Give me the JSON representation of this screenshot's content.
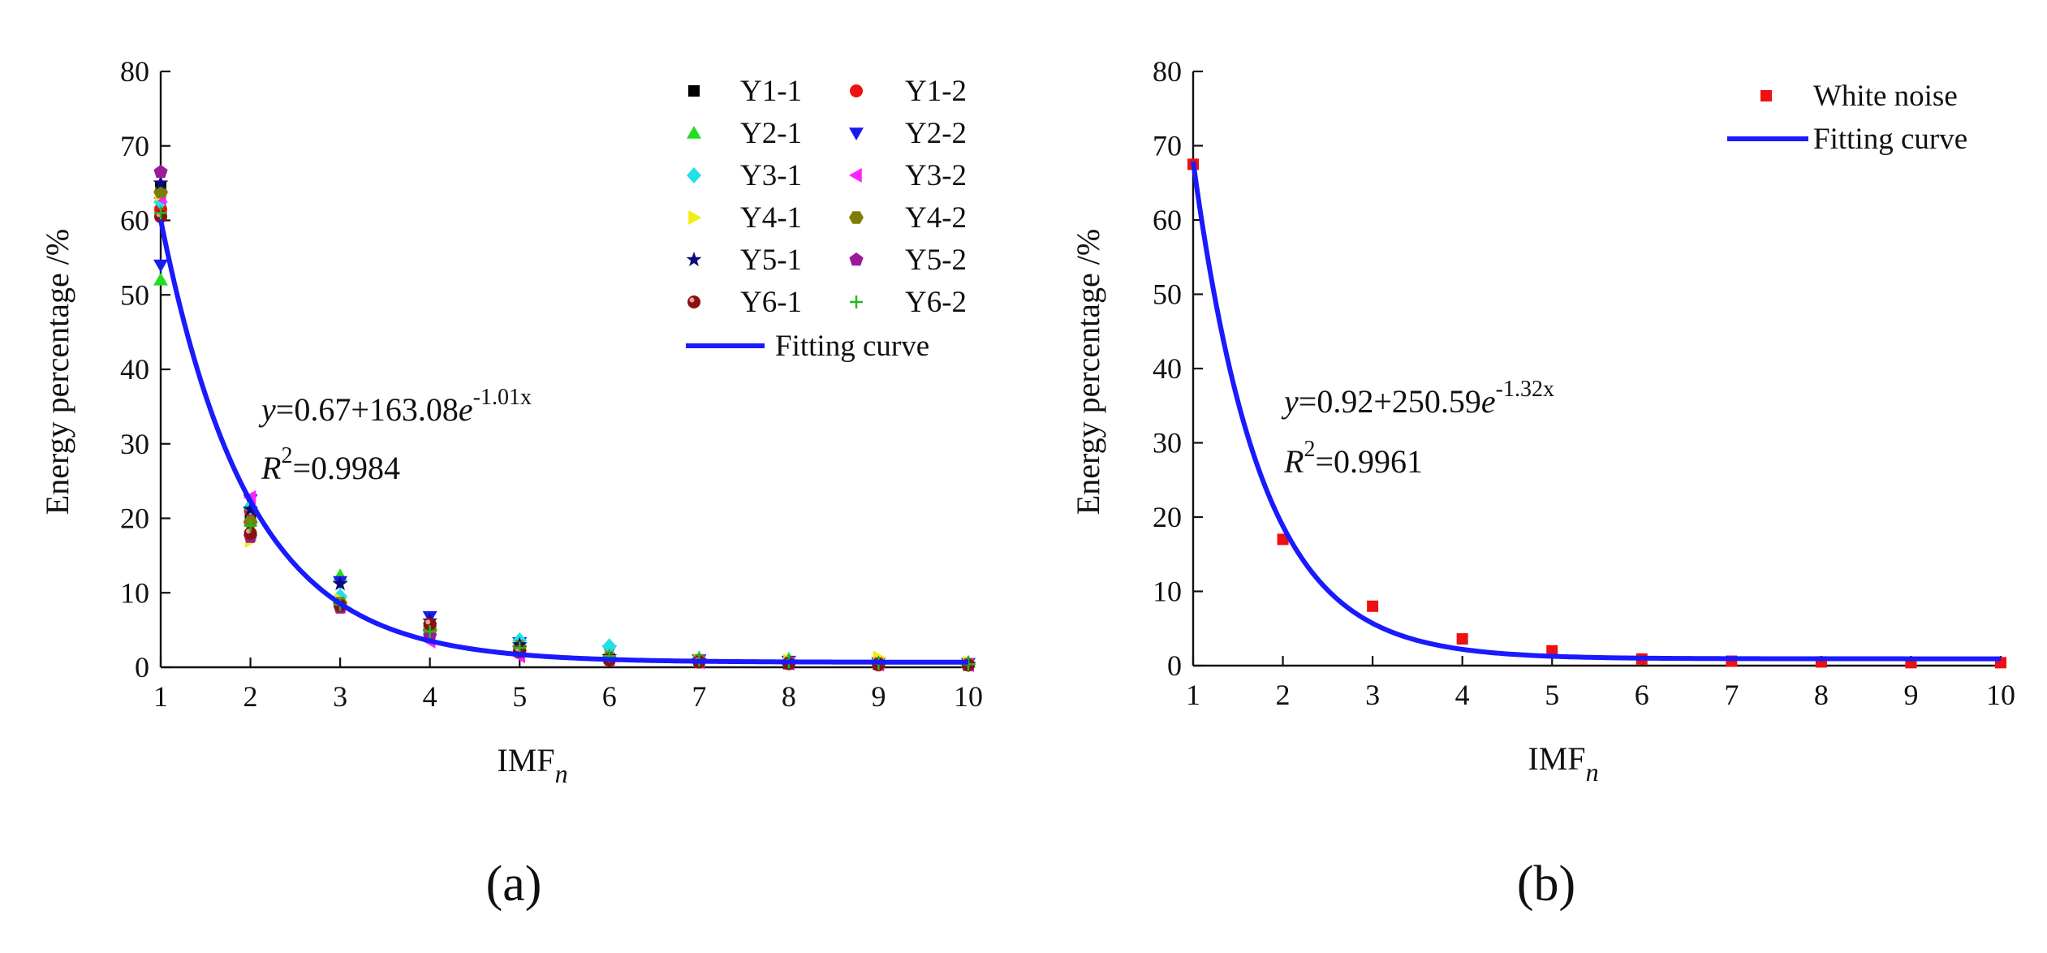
{
  "chart_data": [
    {
      "type": "scatter",
      "panel_label": "(a)",
      "xlabel": "IMF",
      "xlabel_sub": "n",
      "ylabel": "Energy percentage /%",
      "xlim": [
        1,
        10
      ],
      "ylim": [
        0,
        80
      ],
      "xticks": [
        1,
        2,
        3,
        4,
        5,
        6,
        7,
        8,
        9,
        10
      ],
      "yticks": [
        0,
        10,
        20,
        30,
        40,
        50,
        60,
        70,
        80
      ],
      "legend_position": "top-right",
      "equation": {
        "y": "y",
        "text": "=0.67+163.08",
        "e": "e",
        "exp": "-1.01x",
        "r": "R",
        "r2sup": "2",
        "r2val": "=0.9984"
      },
      "fit": {
        "name": "Fitting curve",
        "a": 0.67,
        "b": 163.08,
        "k": -1.01,
        "color": "#1a1aff"
      },
      "series": [
        {
          "name": "Y1-1",
          "marker": "square",
          "color": "#000000",
          "x": [
            1,
            2,
            3,
            4,
            5,
            6,
            7,
            8,
            9,
            10
          ],
          "y": [
            64.5,
            20.5,
            8.8,
            5.2,
            2.6,
            1.2,
            0.8,
            0.5,
            0.4,
            0.3
          ]
        },
        {
          "name": "Y1-2",
          "marker": "circle",
          "color": "#ee1111",
          "x": [
            1,
            2,
            3,
            4,
            5,
            6,
            7,
            8,
            9,
            10
          ],
          "y": [
            61.5,
            21.0,
            8.5,
            5.4,
            2.4,
            1.1,
            0.8,
            0.5,
            0.3,
            0.3
          ]
        },
        {
          "name": "Y2-1",
          "marker": "triangle-up",
          "color": "#22dd22",
          "x": [
            1,
            2,
            3,
            4,
            5,
            6,
            7,
            8,
            9,
            10
          ],
          "y": [
            52.0,
            22.0,
            12.3,
            6.5,
            3.5,
            2.0,
            1.3,
            1.1,
            0.8,
            0.7
          ]
        },
        {
          "name": "Y2-2",
          "marker": "triangle-down",
          "color": "#1a1aee",
          "x": [
            1,
            2,
            3,
            4,
            5,
            6,
            7,
            8,
            9,
            10
          ],
          "y": [
            54.0,
            22.5,
            11.5,
            6.8,
            3.3,
            2.2,
            1.0,
            0.8,
            0.6,
            0.5
          ]
        },
        {
          "name": "Y3-1",
          "marker": "diamond",
          "color": "#22e0e8",
          "x": [
            1,
            2,
            3,
            4,
            5,
            6,
            7,
            8,
            9,
            10
          ],
          "y": [
            62.5,
            21.5,
            9.5,
            5.5,
            3.6,
            2.8,
            1.0,
            0.6,
            0.5,
            0.4
          ]
        },
        {
          "name": "Y3-2",
          "marker": "triangle-left",
          "color": "#ff22ff",
          "x": [
            1,
            2,
            3,
            4,
            5,
            6,
            7,
            8,
            9,
            10
          ],
          "y": [
            63.0,
            22.8,
            8.2,
            3.5,
            1.5,
            1.0,
            0.7,
            0.5,
            0.4,
            0.3
          ]
        },
        {
          "name": "Y4-1",
          "marker": "triangle-right",
          "color": "#eeee11",
          "x": [
            1,
            2,
            3,
            4,
            5,
            6,
            7,
            8,
            9,
            10
          ],
          "y": [
            63.5,
            17.0,
            9.0,
            4.5,
            2.5,
            1.3,
            1.0,
            0.9,
            1.3,
            0.6
          ]
        },
        {
          "name": "Y4-2",
          "marker": "hexagon",
          "color": "#7d7d0a",
          "x": [
            1,
            2,
            3,
            4,
            5,
            6,
            7,
            8,
            9,
            10
          ],
          "y": [
            63.8,
            19.5,
            8.6,
            5.0,
            2.8,
            1.3,
            0.9,
            0.6,
            0.5,
            0.4
          ]
        },
        {
          "name": "Y5-1",
          "marker": "star",
          "color": "#0a0a7a",
          "x": [
            1,
            2,
            3,
            4,
            5,
            6,
            7,
            8,
            9,
            10
          ],
          "y": [
            65.0,
            21.2,
            11.2,
            6.2,
            3.0,
            1.4,
            0.9,
            0.6,
            0.5,
            0.4
          ]
        },
        {
          "name": "Y5-2",
          "marker": "pentagon",
          "color": "#9a1a9a",
          "x": [
            1,
            2,
            3,
            4,
            5,
            6,
            7,
            8,
            9,
            10
          ],
          "y": [
            66.5,
            17.5,
            8.0,
            4.2,
            2.0,
            1.0,
            0.7,
            0.5,
            0.4,
            0.3
          ]
        },
        {
          "name": "Y6-1",
          "marker": "ball",
          "color": "#8b1010",
          "x": [
            1,
            2,
            3,
            4,
            5,
            6,
            7,
            8,
            9,
            10
          ],
          "y": [
            60.5,
            18.0,
            8.3,
            5.8,
            2.2,
            1.0,
            0.7,
            0.5,
            0.4,
            0.3
          ]
        },
        {
          "name": "Y6-2",
          "marker": "plus",
          "color": "#22b822",
          "x": [
            1,
            2,
            3,
            4,
            5,
            6,
            7,
            8,
            9,
            10
          ],
          "y": [
            61.0,
            19.0,
            8.4,
            4.8,
            2.6,
            1.5,
            1.0,
            0.7,
            0.5,
            0.4
          ]
        }
      ]
    },
    {
      "type": "scatter",
      "panel_label": "(b)",
      "xlabel": "IMF",
      "xlabel_sub": "n",
      "ylabel": "Energy percentage /%",
      "xlim": [
        1,
        10
      ],
      "ylim": [
        0,
        80
      ],
      "xticks": [
        1,
        2,
        3,
        4,
        5,
        6,
        7,
        8,
        9,
        10
      ],
      "yticks": [
        0,
        10,
        20,
        30,
        40,
        50,
        60,
        70,
        80
      ],
      "legend_position": "top-right",
      "equation": {
        "y": "y",
        "text": "=0.92+250.59",
        "e": "e",
        "exp": "-1.32x",
        "r": "R",
        "r2sup": "2",
        "r2val": "=0.9961"
      },
      "fit": {
        "name": "Fitting curve",
        "a": 0.92,
        "b": 250.59,
        "k": -1.32,
        "color": "#1a1aff"
      },
      "series": [
        {
          "name": "White noise",
          "marker": "square",
          "color": "#ee1111",
          "x": [
            1,
            2,
            3,
            4,
            5,
            6,
            7,
            8,
            9,
            10
          ],
          "y": [
            67.5,
            17.0,
            8.0,
            3.6,
            2.0,
            0.9,
            0.6,
            0.5,
            0.4,
            0.4
          ]
        }
      ]
    }
  ]
}
